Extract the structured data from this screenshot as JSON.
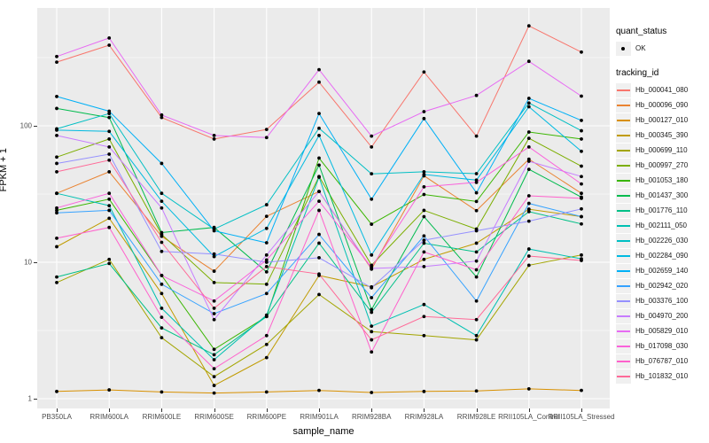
{
  "figure": {
    "y_axis_title": "FPKM + 1",
    "x_axis_title": "sample_name",
    "legend": {
      "quant_status_title": "quant_status",
      "quant_status_items": [
        {
          "label": "OK"
        }
      ],
      "tracking_title": "tracking_id"
    }
  },
  "chart_data": {
    "type": "line",
    "title": "",
    "xlabel": "sample_name",
    "ylabel": "FPKM + 1",
    "y_scale": "log10",
    "y_ticks": [
      1,
      10,
      100
    ],
    "y_minor_ticks": [
      3.162,
      31.62,
      316.2
    ],
    "ylim": [
      0.81,
      700
    ],
    "grid": "white major and minor on gray panel",
    "legend_position": "right",
    "panel_bg": "#EBEBEB",
    "point_color": "#000000",
    "point_legend": {
      "title": "quant_status",
      "label": "OK"
    },
    "categories": [
      "PB350LA",
      "RRIM600LA",
      "RRIM600LE",
      "RRIM600SE",
      "RRIM600PE",
      "RRIM901LA",
      "RRIM928BA",
      "RRIM928LA",
      "RRIM928LE",
      "RRII105LA_Control",
      "RRII105LA_Stressed"
    ],
    "series": [
      {
        "name": "Hb_000041_080",
        "color": "#F8766D",
        "values": [
          293,
          390,
          115,
          80,
          94,
          209,
          70,
          248,
          84,
          540,
          347
        ]
      },
      {
        "name": "Hb_000096_090",
        "color": "#EA8331",
        "values": [
          32,
          46,
          15.5,
          8.6,
          21.7,
          33,
          8.9,
          43,
          23.9,
          57,
          32
        ]
      },
      {
        "name": "Hb_000127_010",
        "color": "#D89000",
        "values": [
          1.13,
          1.16,
          1.12,
          1.1,
          1.12,
          1.15,
          1.11,
          1.13,
          1.14,
          1.18,
          1.15
        ]
      },
      {
        "name": "Hb_000345_390",
        "color": "#C09B00",
        "values": [
          13,
          21,
          5.9,
          1.25,
          2.0,
          8,
          6.6,
          10.5,
          13.8,
          24.5,
          21.6
        ]
      },
      {
        "name": "Hb_000699_110",
        "color": "#A3A500",
        "values": [
          7.1,
          10.5,
          2.8,
          1.45,
          2.5,
          5.8,
          3.1,
          2.9,
          2.7,
          9.5,
          11.3
        ]
      },
      {
        "name": "Hb_000997_270",
        "color": "#7CAE00",
        "values": [
          59,
          80,
          16,
          7.1,
          6.9,
          42.5,
          9.5,
          24,
          17.5,
          81,
          50.6
        ]
      },
      {
        "name": "Hb_001053_180",
        "color": "#39B600",
        "values": [
          24,
          29,
          8,
          2.3,
          4.0,
          58,
          19,
          31.4,
          27.9,
          90,
          80
        ]
      },
      {
        "name": "Hb_001437_300",
        "color": "#00BB4E",
        "values": [
          134,
          115,
          16.5,
          18,
          8.5,
          51.5,
          4.5,
          21.6,
          7.8,
          48,
          30
        ]
      },
      {
        "name": "Hb_001776_110",
        "color": "#00C087",
        "values": [
          7.8,
          9.8,
          3.3,
          2.1,
          4.0,
          13.8,
          4.3,
          13.8,
          11.9,
          23.5,
          19.1
        ]
      },
      {
        "name": "Hb_002111_050",
        "color": "#00C0B2",
        "values": [
          32,
          26,
          4.6,
          1.93,
          4.1,
          42,
          3.4,
          4.9,
          2.9,
          12.5,
          10.6
        ]
      },
      {
        "name": "Hb_002226_030",
        "color": "#00BFC4",
        "values": [
          95,
          123,
          32,
          17.5,
          26.4,
          96,
          44.5,
          46,
          44.6,
          147,
          92
        ]
      },
      {
        "name": "Hb_002284_090",
        "color": "#00BAE0",
        "values": [
          93,
          91,
          28,
          11,
          17.7,
          85,
          11.3,
          44,
          40,
          138,
          65
        ]
      },
      {
        "name": "Hb_002659_140",
        "color": "#00B0F6",
        "values": [
          164,
          128,
          53,
          17,
          13.9,
          123,
          29,
          113,
          32.3,
          159,
          109.5
        ]
      },
      {
        "name": "Hb_002942_020",
        "color": "#35A2FF",
        "values": [
          23,
          24,
          6.9,
          4.2,
          5.9,
          16,
          5.5,
          15.6,
          5.2,
          27,
          21.6
        ]
      },
      {
        "name": "Hb_003376_100",
        "color": "#9590FF",
        "values": [
          53,
          62,
          12,
          11.5,
          10,
          10.8,
          6.5,
          14.5,
          17,
          20,
          24.6
        ]
      },
      {
        "name": "Hb_004970_200",
        "color": "#C77CFF",
        "values": [
          85,
          70,
          25,
          3.8,
          11.3,
          33,
          9,
          9.3,
          10.2,
          55,
          42.5
        ]
      },
      {
        "name": "Hb_005829_010",
        "color": "#E76BF3",
        "values": [
          322,
          440,
          120,
          85,
          82,
          258,
          84,
          127,
          167,
          297,
          165
        ]
      },
      {
        "name": "Hb_017098_030",
        "color": "#FA62DB",
        "values": [
          25,
          32,
          8,
          5.2,
          10.4,
          28,
          9.2,
          35.7,
          38.5,
          70,
          37.5
        ]
      },
      {
        "name": "Hb_076787_010",
        "color": "#FF61CC",
        "values": [
          15,
          18,
          3.95,
          1.66,
          2.9,
          24,
          2.2,
          11.9,
          8.8,
          30.7,
          29.4
        ]
      },
      {
        "name": "Hb_101832_010",
        "color": "#FF6A98",
        "values": [
          46,
          56,
          14,
          4.6,
          9.3,
          8.2,
          2.7,
          4.0,
          3.8,
          11.1,
          10.3
        ]
      }
    ]
  }
}
